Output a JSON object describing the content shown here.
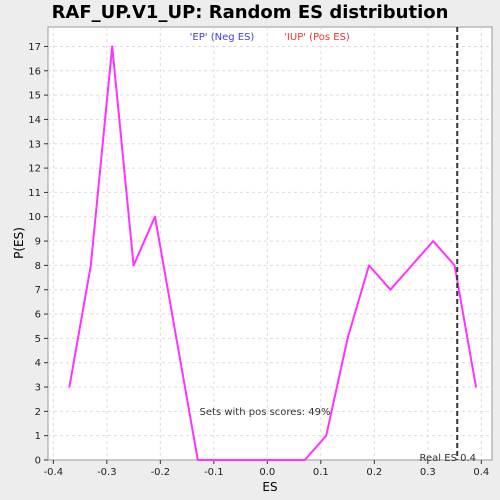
{
  "chart_data": {
    "type": "line",
    "title": "RAF_UP.V1_UP: Random ES distribution",
    "xlabel": "ES",
    "ylabel": "P(ES)",
    "xlim": [
      -0.41,
      0.42
    ],
    "ylim": [
      0,
      17.8
    ],
    "xticks": [
      -0.4,
      -0.3,
      -0.2,
      -0.1,
      0.0,
      0.1,
      0.2,
      0.3,
      0.4
    ],
    "xtick_labels": [
      "-0.4",
      "-0.3",
      "-0.2",
      "-0.1",
      "0.0",
      "0.1",
      "0.2",
      "0.3",
      "0.4"
    ],
    "yticks": [
      0,
      1,
      2,
      3,
      4,
      5,
      6,
      7,
      8,
      9,
      10,
      11,
      12,
      13,
      14,
      15,
      16,
      17
    ],
    "ytick_labels": [
      "0",
      "1",
      "2",
      "3",
      "4",
      "5",
      "6",
      "7",
      "8",
      "9",
      "10",
      "11",
      "12",
      "13",
      "14",
      "15",
      "16",
      "17"
    ],
    "grid": true,
    "series": [
      {
        "color": "#ff33ff",
        "x": [
          -0.37,
          -0.33,
          -0.29,
          -0.25,
          -0.21,
          -0.17,
          -0.13,
          -0.09,
          -0.05,
          -0.01,
          0.03,
          0.07,
          0.11,
          0.15,
          0.19,
          0.23,
          0.27,
          0.31,
          0.35,
          0.39
        ],
        "y": [
          3,
          8,
          17,
          8,
          10,
          5,
          0,
          0,
          0,
          0,
          0,
          0,
          1,
          5,
          8,
          7,
          8,
          9,
          8,
          3
        ]
      }
    ],
    "legend": [
      {
        "label": "'EP' (Neg ES)",
        "color": "#4040dd"
      },
      {
        "label": "'IUP' (Pos ES)",
        "color": "#ee3333"
      }
    ],
    "legend_position": "top-center",
    "vline": {
      "x": 0.355,
      "color": "#333333",
      "style": "dashed"
    },
    "annotations": {
      "pos_scores": "Sets with pos scores: 49%",
      "real_es": "Real ES 0.4"
    }
  }
}
